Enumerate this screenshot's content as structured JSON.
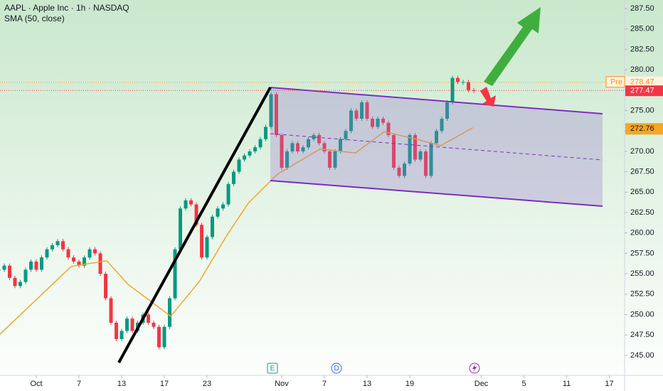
{
  "chart_data": {
    "type": "candlestick",
    "title": "AAPL · Apple Inc · 1h · NASDAQ",
    "series": [
      {
        "up_color": "#089981",
        "down_color": "#f23645",
        "x": [
          -3.5,
          -3,
          -2.5,
          -2,
          -1.5,
          -1,
          -0.5,
          0,
          0.5,
          1,
          1.5,
          2,
          2.5,
          3,
          3.5,
          4,
          4.5,
          5,
          5.5,
          6,
          6.5,
          7,
          7.5,
          8,
          8.5,
          9,
          9.5,
          10,
          10.5,
          11,
          11.5,
          12,
          12.5,
          13,
          13.5,
          14,
          14.5,
          15,
          15.5,
          16,
          16.5,
          17,
          17.5,
          18,
          18.5,
          19,
          19.5,
          20,
          20.5,
          21,
          21.5,
          22,
          22.5,
          23,
          23.5,
          24,
          24.5,
          25,
          25.5,
          26,
          26.5,
          27,
          27.5,
          28,
          28.5,
          29,
          29.5,
          30,
          30.5,
          31,
          31.5,
          32,
          32.5,
          33,
          33.5,
          34,
          34.5,
          35,
          35.5,
          36,
          36.5,
          37,
          37.5,
          38,
          38.5,
          39,
          39.5,
          40,
          40.5,
          41
        ],
        "values": [
          255.5,
          256,
          254.5,
          253.5,
          254,
          255.5,
          256.5,
          255.5,
          257,
          258,
          258.5,
          259,
          258,
          257,
          256.5,
          256,
          257,
          258,
          257.5,
          255,
          252,
          249,
          247,
          248,
          249.5,
          248,
          249,
          250,
          249,
          248.5,
          246,
          248.5,
          252,
          258,
          263,
          264,
          263.5,
          261,
          257,
          259.5,
          262,
          263,
          263.5,
          266,
          267.5,
          269,
          269.5,
          270,
          270.5,
          271.5,
          273,
          277,
          272,
          268,
          270,
          271,
          270,
          270.5,
          271.5,
          272,
          271,
          270,
          268,
          270,
          271.5,
          272.5,
          275,
          274,
          276,
          274,
          273,
          274,
          273.5,
          272,
          268,
          267,
          268.5,
          272,
          269,
          270,
          267,
          271,
          272.5,
          274,
          276,
          279,
          278.5,
          278.5,
          277.5,
          277.47
        ]
      },
      {
        "name": "SMA (50, close)",
        "color": "#f5a623",
        "x": [
          -3.4,
          3.27,
          6.6,
          8.6,
          12.6,
          15.3,
          17.9,
          19.9,
          22.6,
          26.6,
          29.9,
          32.6,
          35.3,
          37.9,
          40.9
        ],
        "values": [
          247.6,
          255.9,
          256.6,
          253.7,
          249.8,
          254.1,
          259.8,
          263.7,
          267.2,
          270.3,
          269.8,
          272.4,
          271.6,
          270.7,
          272.9
        ]
      }
    ],
    "price_labels": {
      "pre": "Pre",
      "pre_price": 278.47,
      "last_price": 277.47,
      "sma_price": 272.76
    },
    "events": [
      "E",
      "D"
    ],
    "xlim": [
      -3.4,
      55.13
    ],
    "xticks": [
      {
        "value": 0,
        "label": "Oct"
      },
      {
        "value": 4,
        "label": "7"
      },
      {
        "value": 8,
        "label": "13"
      },
      {
        "value": 12,
        "label": "17"
      },
      {
        "value": 16,
        "label": "23"
      },
      {
        "value": 23,
        "label": "Nov"
      },
      {
        "value": 27,
        "label": "7"
      },
      {
        "value": 31,
        "label": "13"
      },
      {
        "value": 35,
        "label": "19"
      },
      {
        "value": 41.7,
        "label": "Dec"
      },
      {
        "value": 45.7,
        "label": "5"
      },
      {
        "value": 49.7,
        "label": "11"
      },
      {
        "value": 53.7,
        "label": "17"
      }
    ],
    "ylim": [
      243.25,
      288.55
    ],
    "yticks": [
      {
        "value": 245,
        "label": "245.00"
      },
      {
        "value": 247.5,
        "label": "247.50"
      },
      {
        "value": 250,
        "label": "250.00"
      },
      {
        "value": 252.5,
        "label": "252.50"
      },
      {
        "value": 255,
        "label": "255.00"
      },
      {
        "value": 257.5,
        "label": "257.50"
      },
      {
        "value": 260,
        "label": "260.00"
      },
      {
        "value": 262.5,
        "label": "262.50"
      },
      {
        "value": 265,
        "label": "265.00"
      },
      {
        "value": 267.5,
        "label": "267.50"
      },
      {
        "value": 270,
        "label": "270.00"
      },
      {
        "value": 272.5,
        "label": "272.50"
      },
      {
        "value": 275,
        "label": "275.00"
      },
      {
        "value": 277.5,
        "label": "277.50"
      },
      {
        "value": 280,
        "label": "280.00"
      },
      {
        "value": 282.5,
        "label": "282.50"
      },
      {
        "value": 285,
        "label": "285.00"
      },
      {
        "value": 287.5,
        "label": "287.50"
      }
    ]
  }
}
